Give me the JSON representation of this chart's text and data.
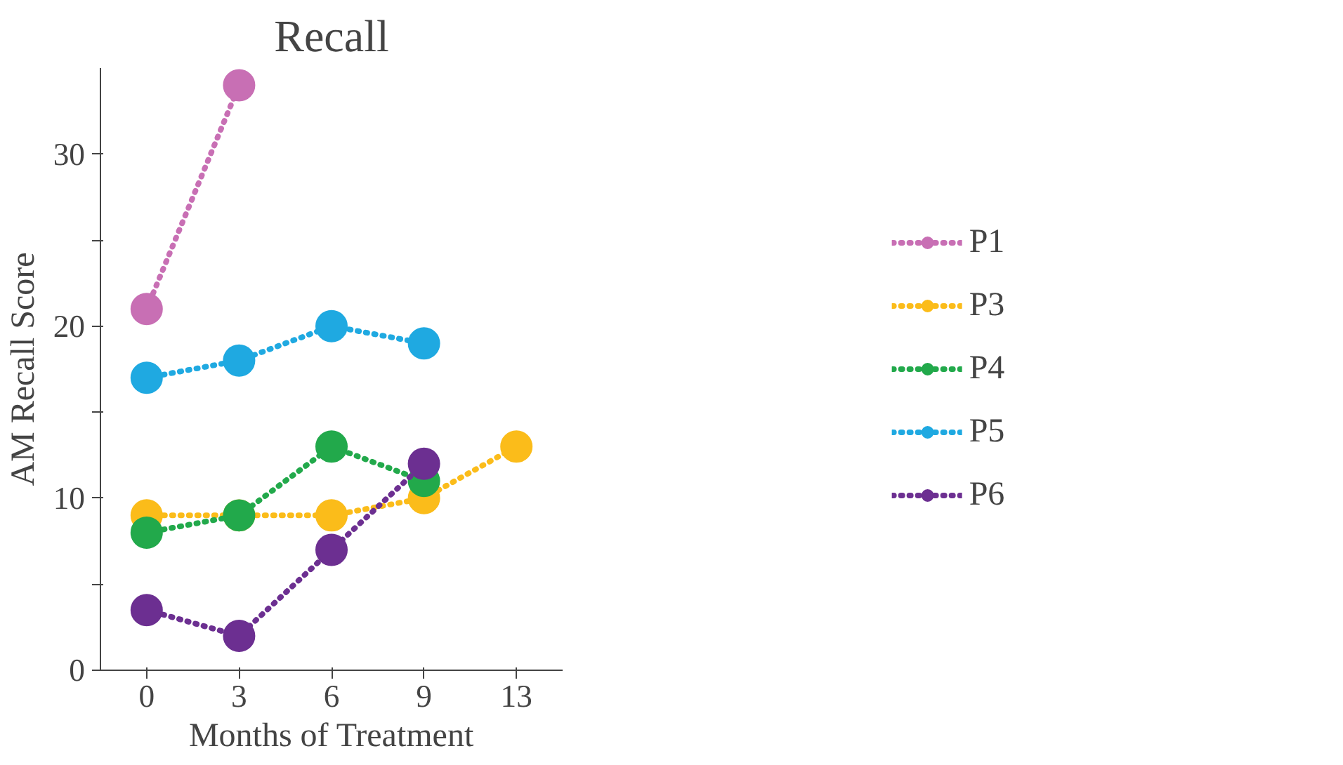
{
  "chart_data": {
    "type": "line",
    "title": "Recall",
    "xlabel": "Months of Treatment",
    "ylabel": "AM Recall Score",
    "categories": [
      "0",
      "3",
      "6",
      "9",
      "13"
    ],
    "ylim": [
      0,
      35
    ],
    "yticks": [
      0,
      {
        "value": 5,
        "label": null
      },
      10,
      {
        "value": 15,
        "label": null
      },
      20,
      {
        "value": 25,
        "label": null
      },
      30
    ],
    "grid": false,
    "legend": "right",
    "marker": "circle",
    "line_style": "dotted",
    "series": [
      {
        "name": "P1",
        "color": "#c86fb4",
        "values": [
          21,
          34,
          null,
          null,
          null
        ]
      },
      {
        "name": "P3",
        "color": "#fbbc1a",
        "values": [
          9,
          9,
          9,
          10,
          13
        ]
      },
      {
        "name": "P4",
        "color": "#22a94b",
        "values": [
          8,
          9,
          13,
          11,
          null
        ]
      },
      {
        "name": "P5",
        "color": "#1fa9e1",
        "values": [
          17,
          18,
          20,
          19,
          null
        ]
      },
      {
        "name": "P6",
        "color": "#6c2f91",
        "values": [
          3.5,
          2,
          7,
          12,
          null
        ]
      }
    ]
  }
}
